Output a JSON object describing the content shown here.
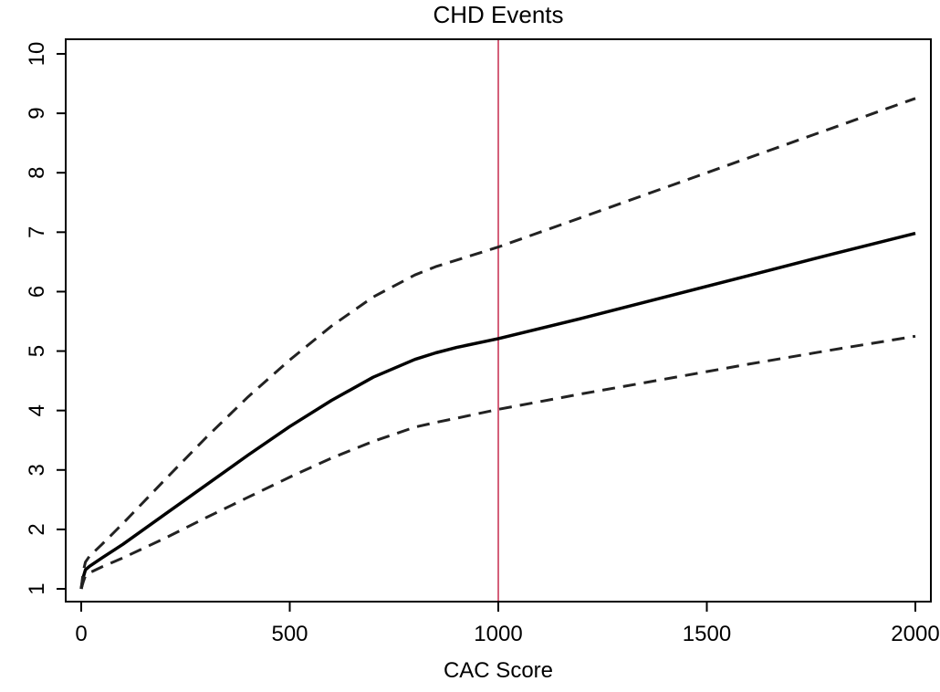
{
  "chart_data": {
    "type": "line",
    "title": "CHD Events",
    "xlabel": "CAC Score",
    "ylabel": "",
    "xlim": [
      0,
      2000
    ],
    "ylim": [
      1,
      10
    ],
    "xticks": [
      0,
      500,
      1000,
      1500,
      2000
    ],
    "xtick_labels": [
      "0",
      "500",
      "1000",
      "1500",
      "2000"
    ],
    "yticks": [
      1,
      2,
      3,
      4,
      5,
      6,
      7,
      8,
      9,
      10
    ],
    "ytick_labels": [
      "1",
      "2",
      "3",
      "4",
      "5",
      "6",
      "7",
      "8",
      "9",
      "10"
    ],
    "grid": false,
    "reference_line": {
      "x": 1000,
      "color": "#d4607a"
    },
    "colors": {
      "line": "#000000",
      "reference": "#d4607a"
    },
    "series": [
      {
        "style": "solid",
        "x": [
          0,
          5,
          10,
          20,
          50,
          100,
          200,
          300,
          400,
          500,
          600,
          700,
          800,
          850,
          900,
          1000,
          1200,
          1400,
          1600,
          1800,
          2000
        ],
        "y": [
          1.0,
          1.2,
          1.32,
          1.38,
          1.52,
          1.75,
          2.25,
          2.75,
          3.25,
          3.73,
          4.17,
          4.56,
          4.86,
          4.97,
          5.06,
          5.21,
          5.55,
          5.91,
          6.27,
          6.63,
          6.98
        ]
      },
      {
        "style": "dashed",
        "x": [
          0,
          5,
          10,
          20,
          50,
          100,
          200,
          300,
          400,
          500,
          600,
          700,
          800,
          850,
          900,
          1000,
          1200,
          1400,
          1600,
          1800,
          2000
        ],
        "y": [
          1.0,
          1.3,
          1.45,
          1.55,
          1.75,
          2.1,
          2.83,
          3.55,
          4.23,
          4.85,
          5.42,
          5.91,
          6.28,
          6.42,
          6.53,
          6.75,
          7.25,
          7.75,
          8.25,
          8.75,
          9.25
        ]
      },
      {
        "style": "dashed",
        "x": [
          0,
          5,
          10,
          20,
          50,
          100,
          200,
          300,
          400,
          500,
          600,
          700,
          800,
          850,
          900,
          1000,
          1200,
          1400,
          1600,
          1800,
          2000
        ],
        "y": [
          1.0,
          1.12,
          1.22,
          1.27,
          1.37,
          1.52,
          1.85,
          2.2,
          2.54,
          2.88,
          3.2,
          3.48,
          3.72,
          3.8,
          3.87,
          4.02,
          4.28,
          4.53,
          4.78,
          5.02,
          5.25
        ]
      }
    ]
  }
}
